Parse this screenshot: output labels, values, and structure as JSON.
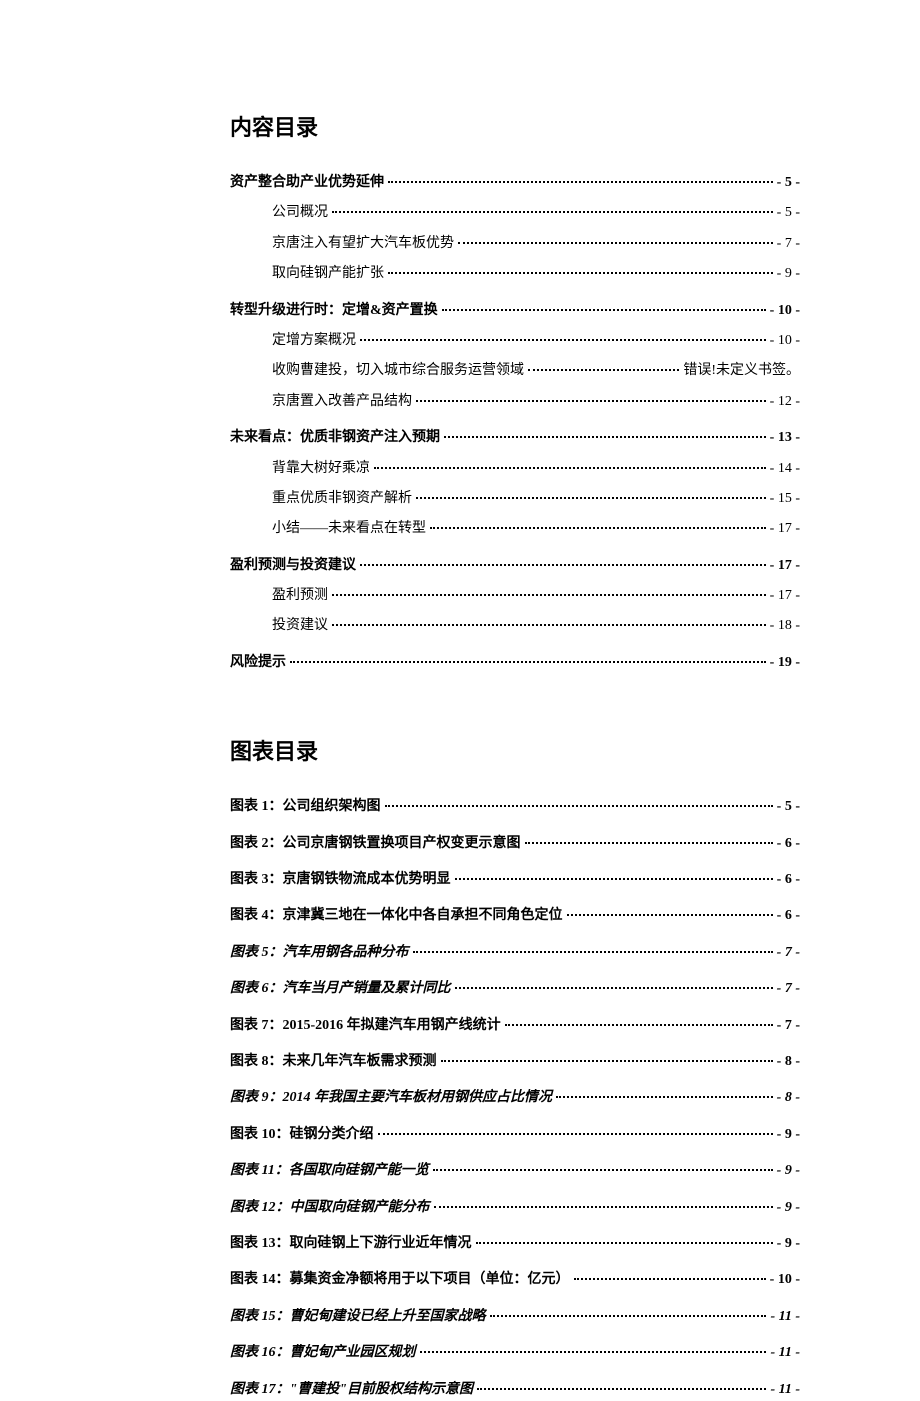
{
  "headings": {
    "content_toc_title": "内容目录",
    "figure_toc_title": "图表目录"
  },
  "content_toc": [
    {
      "level": 0,
      "title": "资产整合助产业优势延伸",
      "page": "- 5 -",
      "italic": false
    },
    {
      "level": 1,
      "title": "公司概况",
      "page": "- 5 -",
      "italic": false
    },
    {
      "level": 1,
      "title": "京唐注入有望扩大汽车板优势",
      "page": "- 7 -",
      "italic": false
    },
    {
      "level": 1,
      "title": "取向硅钢产能扩张",
      "page": "- 9 -",
      "italic": false
    },
    {
      "level": 0,
      "title": "转型升级进行时：定增&资产置换",
      "page": "- 10 -",
      "italic": false
    },
    {
      "level": 1,
      "title": "定增方案概况",
      "page": "- 10 -",
      "italic": false
    },
    {
      "level": 1,
      "title": "收购曹建投，切入城市综合服务运营领域",
      "page": "错误!未定义书签。",
      "italic": false
    },
    {
      "level": 1,
      "title": "京唐置入改善产品结构",
      "page": "- 12 -",
      "italic": false
    },
    {
      "level": 0,
      "title": "未来看点：优质非钢资产注入预期",
      "page": "- 13 -",
      "italic": false
    },
    {
      "level": 1,
      "title": "背靠大树好乘凉",
      "page": "- 14 -",
      "italic": false
    },
    {
      "level": 1,
      "title": "重点优质非钢资产解析",
      "page": "- 15 -",
      "italic": false
    },
    {
      "level": 1,
      "title": "小结——未来看点在转型",
      "page": "- 17 -",
      "italic": false
    },
    {
      "level": 0,
      "title": "盈利预测与投资建议",
      "page": "- 17 -",
      "italic": false
    },
    {
      "level": 1,
      "title": "盈利预测",
      "page": "- 17 -",
      "italic": false
    },
    {
      "level": 1,
      "title": "投资建议",
      "page": "- 18 -",
      "italic": false
    },
    {
      "level": 0,
      "title": "风险提示",
      "page": "- 19 -",
      "italic": false
    }
  ],
  "figure_toc": [
    {
      "title": "图表 1：公司组织架构图",
      "page": "- 5 -",
      "italic": false
    },
    {
      "title": "图表 2：公司京唐钢铁置换项目产权变更示意图",
      "page": "- 6 -",
      "italic": false
    },
    {
      "title": "图表 3：京唐钢铁物流成本优势明显",
      "page": "- 6 -",
      "italic": false
    },
    {
      "title": "图表 4：京津冀三地在一体化中各自承担不同角色定位",
      "page": "- 6 -",
      "italic": false
    },
    {
      "title": "图表 5：汽车用钢各品种分布",
      "page": "- 7 -",
      "italic": true
    },
    {
      "title": "图表 6：汽车当月产销量及累计同比",
      "page": "- 7 -",
      "italic": true
    },
    {
      "title": "图表 7：2015-2016 年拟建汽车用钢产线统计",
      "page": "- 7 -",
      "italic": false
    },
    {
      "title": "图表 8：未来几年汽车板需求预测",
      "page": "- 8 -",
      "italic": false
    },
    {
      "title": "图表 9：2014 年我国主要汽车板材用钢供应占比情况",
      "page": "- 8 -",
      "italic": true
    },
    {
      "title": "图表 10：硅钢分类介绍",
      "page": "- 9 -",
      "italic": false
    },
    {
      "title": "图表 11：各国取向硅钢产能一览",
      "page": "- 9 -",
      "italic": true
    },
    {
      "title": "图表 12：中国取向硅钢产能分布",
      "page": "- 9 -",
      "italic": true
    },
    {
      "title": "图表 13：取向硅钢上下游行业近年情况",
      "page": "- 9 -",
      "italic": false
    },
    {
      "title": "图表 14：募集资金净额将用于以下项目（单位：亿元）",
      "page": "- 10 -",
      "italic": false
    },
    {
      "title": "图表 15：曹妃甸建设已经上升至国家战略",
      "page": "- 11 -",
      "italic": true
    },
    {
      "title": "图表 16：曹妃甸产业园区规划",
      "page": "- 11 -",
      "italic": true
    },
    {
      "title": "图表 17：\"曹建投\"目前股权结构示意图",
      "page": "- 11 -",
      "italic": true
    }
  ]
}
